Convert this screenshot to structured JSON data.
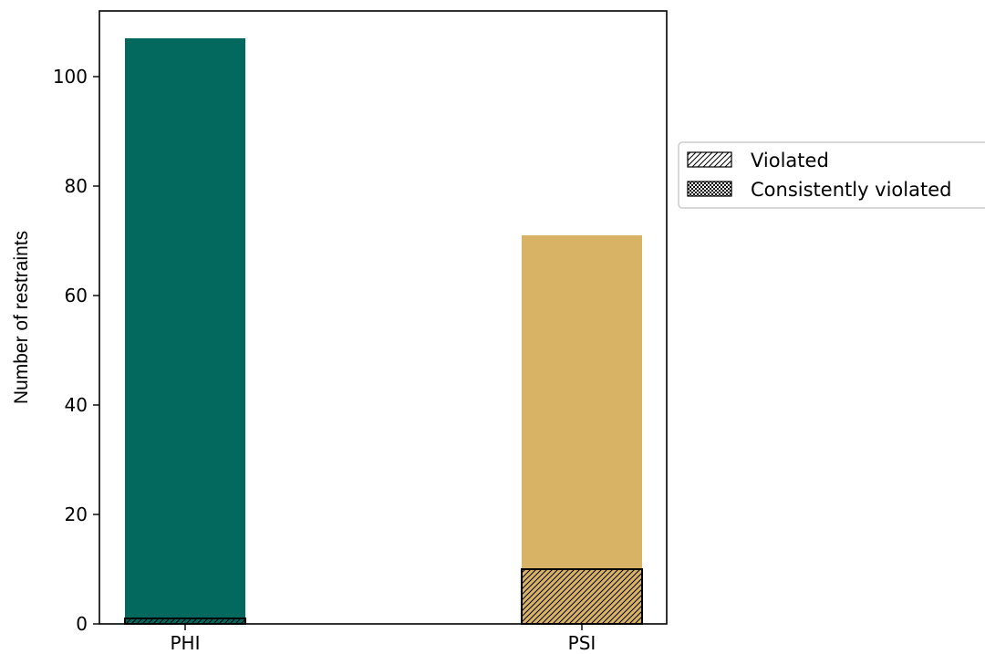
{
  "chart_data": {
    "type": "bar",
    "categories": [
      "PHI",
      "PSI"
    ],
    "bar_colors": [
      "#03685e",
      "#d8b366"
    ],
    "series": [
      {
        "name": "",
        "values": [
          107,
          71
        ]
      },
      {
        "name": "Violated",
        "values": [
          1,
          10
        ],
        "hatch": "diagonal"
      },
      {
        "name": "Consistently violated",
        "values": [
          0,
          0
        ],
        "hatch": "dotted"
      }
    ],
    "xlabel": "",
    "ylabel": "Number of restraints",
    "ylim": [
      0,
      112
    ],
    "yticks": [
      0,
      20,
      40,
      60,
      80,
      100
    ],
    "grid": false,
    "legend": {
      "placement": "outside-right",
      "entries": [
        {
          "label": "Violated",
          "hatch": "diagonal"
        },
        {
          "label": "Consistently violated",
          "hatch": "dotted"
        }
      ]
    }
  }
}
